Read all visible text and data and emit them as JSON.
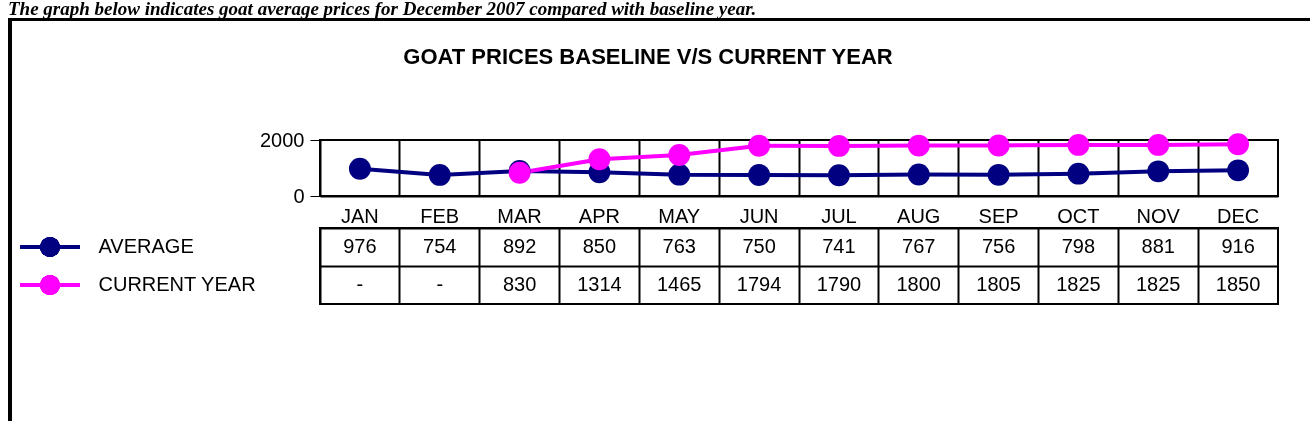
{
  "chart_data": {
    "type": "line",
    "title": "GOAT PRICES BASELINE V/S CURRENT YEAR",
    "annotations": [
      "The graph below indicates goat average prices for December 2007 compared with baseline year."
    ],
    "categories": [
      "JAN",
      "FEB",
      "MAR",
      "APR",
      "MAY",
      "JUN",
      "JUL",
      "AUG",
      "SEP",
      "OCT",
      "NOV",
      "DEC"
    ],
    "series": [
      {
        "name": "AVERAGE",
        "color": "#000080",
        "values": [
          976,
          754,
          892,
          850,
          763,
          750,
          741,
          767,
          756,
          798,
          881,
          916
        ],
        "value_labels": [
          "976",
          "754",
          "892",
          "850",
          "763",
          "750",
          "741",
          "767",
          "756",
          "798",
          "881",
          "916"
        ]
      },
      {
        "name": "CURRENT YEAR",
        "color": "#ff00ff",
        "values": [
          null,
          null,
          830,
          1314,
          1465,
          1794,
          1790,
          1800,
          1805,
          1825,
          1825,
          1850
        ],
        "value_labels": [
          "-",
          "-",
          "830",
          "1314",
          "1465",
          "1794",
          "1790",
          "1800",
          "1805",
          "1825",
          "1825",
          "1850"
        ]
      }
    ],
    "ylim": [
      0,
      2000
    ],
    "yticks": [
      0,
      2000
    ],
    "grid": "x",
    "legend": "bottom left",
    "marker": "circle",
    "line_style": "solid"
  }
}
